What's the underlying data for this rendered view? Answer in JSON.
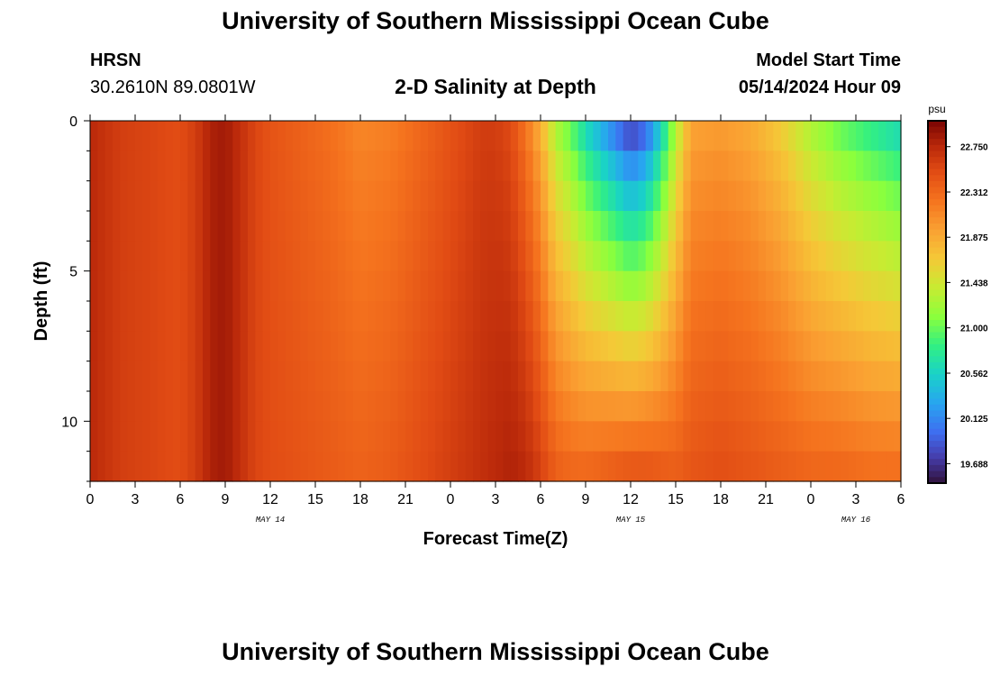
{
  "header": {
    "title": "University of Southern Mississippi Ocean Cube",
    "station": "HRSN",
    "coordinates": "30.2610N  89.0801W",
    "subtitle": "2-D Salinity at Depth",
    "model_start_label": "Model Start Time",
    "model_start_value": "05/14/2024 Hour 09"
  },
  "footer": {
    "title": "University of Southern Mississippi Ocean Cube"
  },
  "chart_data": {
    "type": "heatmap",
    "xlabel": "Forecast Time(Z)",
    "ylabel": "Depth (ft)",
    "x_range_hours": [
      0,
      54
    ],
    "y_range_ft": [
      0,
      12
    ],
    "x_tick_labels": [
      "0",
      "3",
      "6",
      "9",
      "12",
      "15",
      "18",
      "21",
      "0",
      "3",
      "6",
      "9",
      "12",
      "15",
      "18",
      "21",
      "0",
      "3",
      "6"
    ],
    "date_labels": [
      {
        "text": "MAY 14",
        "hour": 12
      },
      {
        "text": "MAY 15",
        "hour": 36
      },
      {
        "text": "MAY 16",
        "hour": 51
      }
    ],
    "y_ticks": [
      0,
      5,
      10
    ],
    "colorbar": {
      "unit": "psu",
      "min": 19.5,
      "max": 23.0,
      "tick_labels": [
        "22.750",
        "22.312",
        "21.875",
        "21.438",
        "21.000",
        "20.562",
        "20.125",
        "19.688"
      ],
      "tick_values": [
        22.75,
        22.312,
        21.875,
        21.438,
        21.0,
        20.562,
        20.125,
        19.688
      ]
    },
    "salinity_psu_by_hour": {
      "hours": [
        0,
        2,
        4,
        6,
        7,
        8,
        9,
        10,
        11,
        12,
        14,
        16,
        18,
        20,
        22,
        24,
        26,
        27,
        28,
        29,
        30,
        31,
        32,
        33,
        34,
        35,
        36,
        37,
        38,
        39,
        40,
        42,
        44,
        46,
        48,
        50,
        52,
        54
      ],
      "depths_ft": [
        0,
        1,
        2,
        3,
        4,
        5,
        6,
        7,
        8,
        9,
        10,
        11,
        12
      ],
      "shallow_profile": [
        22.75,
        22.6,
        22.55,
        22.5,
        22.6,
        22.8,
        22.85,
        22.7,
        22.55,
        22.45,
        22.35,
        22.25,
        22.1,
        22.15,
        22.3,
        22.45,
        22.6,
        22.6,
        22.5,
        22.2,
        21.8,
        21.2,
        20.9,
        20.5,
        20.2,
        19.9,
        19.6,
        19.8,
        20.4,
        21.2,
        21.9,
        21.95,
        21.85,
        21.6,
        21.2,
        20.9,
        20.7,
        20.5
      ],
      "deep_profile": [
        22.75,
        22.6,
        22.55,
        22.5,
        22.6,
        22.8,
        22.85,
        22.7,
        22.55,
        22.5,
        22.45,
        22.4,
        22.35,
        22.4,
        22.5,
        22.6,
        22.7,
        22.75,
        22.8,
        22.75,
        22.6,
        22.4,
        22.35,
        22.35,
        22.4,
        22.45,
        22.5,
        22.5,
        22.45,
        22.4,
        22.45,
        22.5,
        22.45,
        22.4,
        22.35,
        22.35,
        22.3,
        22.3
      ]
    }
  }
}
